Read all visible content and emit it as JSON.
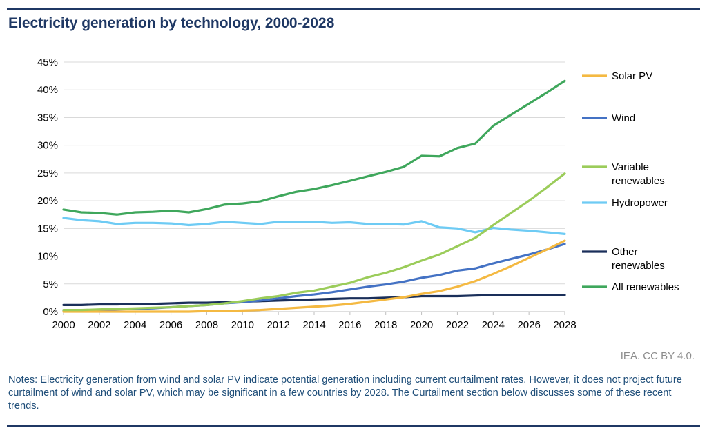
{
  "title": "Electricity generation by technology, 2000-2028",
  "source": "IEA. CC BY 4.0.",
  "notes": "Notes: Electricity generation from wind and solar PV indicate potential generation including current curtailment rates. However, it does not project future curtailment of wind and solar PV, which may be significant in a few countries by 2028. The Curtailment section below discusses some of these recent trends.",
  "chart_data": {
    "type": "line",
    "title": "Electricity generation by technology, 2000-2028",
    "xlabel": "",
    "ylabel": "",
    "x": [
      2000,
      2001,
      2002,
      2003,
      2004,
      2005,
      2006,
      2007,
      2008,
      2009,
      2010,
      2011,
      2012,
      2013,
      2014,
      2015,
      2016,
      2017,
      2018,
      2019,
      2020,
      2021,
      2022,
      2023,
      2024,
      2025,
      2026,
      2027,
      2028
    ],
    "xlim": [
      2000,
      2028
    ],
    "ylim": [
      0,
      45
    ],
    "x_ticks": [
      "2000",
      "2002",
      "2004",
      "2006",
      "2008",
      "2010",
      "2012",
      "2014",
      "2016",
      "2018",
      "2020",
      "2022",
      "2024",
      "2026",
      "2028"
    ],
    "y_ticks": [
      "0%",
      "5%",
      "10%",
      "15%",
      "20%",
      "25%",
      "30%",
      "35%",
      "40%",
      "45%"
    ],
    "grid": "horizontal",
    "legend_position": "right",
    "series": [
      {
        "name": "Solar PV",
        "color": "#f4b942",
        "values": [
          0,
          0,
          0,
          0,
          0,
          0,
          0,
          0,
          0.1,
          0.1,
          0.2,
          0.3,
          0.5,
          0.7,
          0.9,
          1.1,
          1.4,
          1.8,
          2.2,
          2.6,
          3.2,
          3.7,
          4.5,
          5.5,
          6.8,
          8.2,
          9.7,
          11.2,
          12.8
        ]
      },
      {
        "name": "Wind",
        "color": "#4472c4",
        "values": [
          0.2,
          0.3,
          0.3,
          0.4,
          0.5,
          0.6,
          0.8,
          1.0,
          1.2,
          1.5,
          1.7,
          2.0,
          2.4,
          2.8,
          3.1,
          3.5,
          4.0,
          4.5,
          4.9,
          5.4,
          6.1,
          6.6,
          7.4,
          7.8,
          8.7,
          9.5,
          10.3,
          11.2,
          12.2
        ]
      },
      {
        "name": "Variable renewables",
        "color": "#9bcc5a",
        "values": [
          0.3,
          0.3,
          0.4,
          0.5,
          0.6,
          0.7,
          0.8,
          1.0,
          1.2,
          1.5,
          1.9,
          2.4,
          2.8,
          3.4,
          3.8,
          4.5,
          5.2,
          6.2,
          7.0,
          8.0,
          9.2,
          10.3,
          11.8,
          13.3,
          15.6,
          17.8,
          20.0,
          22.4,
          24.9
        ]
      },
      {
        "name": "Hydropower",
        "color": "#6ecbf4",
        "values": [
          16.9,
          16.5,
          16.3,
          15.8,
          16.0,
          16.0,
          15.9,
          15.6,
          15.8,
          16.2,
          16.0,
          15.8,
          16.2,
          16.2,
          16.2,
          16.0,
          16.1,
          15.8,
          15.8,
          15.7,
          16.3,
          15.2,
          15.0,
          14.3,
          15.1,
          14.8,
          14.6,
          14.3,
          14.0
        ]
      },
      {
        "name": "Other renewables",
        "color": "#1a2f5a",
        "values": [
          1.2,
          1.2,
          1.3,
          1.3,
          1.4,
          1.4,
          1.5,
          1.6,
          1.6,
          1.7,
          1.8,
          1.9,
          2.0,
          2.1,
          2.2,
          2.3,
          2.4,
          2.4,
          2.5,
          2.6,
          2.8,
          2.8,
          2.8,
          2.9,
          3.0,
          3.0,
          3.0,
          3.0,
          3.0
        ]
      },
      {
        "name": "All renewables",
        "color": "#3fa75c",
        "values": [
          18.4,
          17.9,
          17.8,
          17.5,
          17.9,
          18.0,
          18.2,
          17.9,
          18.5,
          19.3,
          19.5,
          19.9,
          20.8,
          21.6,
          22.1,
          22.8,
          23.6,
          24.4,
          25.2,
          26.1,
          28.1,
          28.0,
          29.5,
          30.3,
          33.5,
          35.5,
          37.5,
          39.5,
          41.6
        ]
      }
    ],
    "legend_labels": [
      {
        "series": "Solar PV",
        "lines": [
          "Solar PV"
        ]
      },
      {
        "series": "Wind",
        "lines": [
          "Wind"
        ]
      },
      {
        "series": "Variable renewables",
        "lines": [
          "Variable",
          "renewables"
        ]
      },
      {
        "series": "Hydropower",
        "lines": [
          "Hydropower"
        ]
      },
      {
        "series": "Other renewables",
        "lines": [
          "Other",
          "renewables"
        ]
      },
      {
        "series": "All renewables",
        "lines": [
          "All renewables"
        ]
      }
    ]
  }
}
